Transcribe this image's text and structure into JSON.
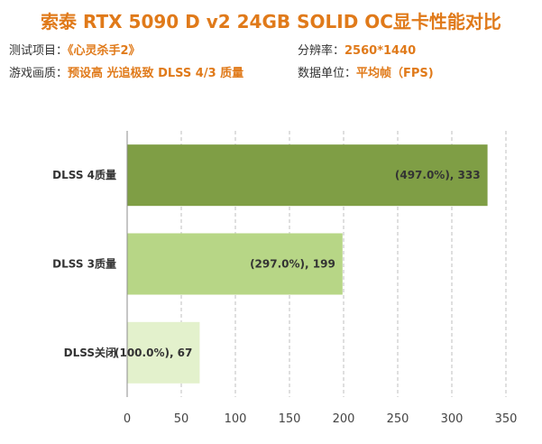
{
  "title": "索泰 RTX 5090 D v2 24GB SOLID OC显卡性能对比",
  "info": {
    "project_label": "测试项目：",
    "project_value": "《心灵杀手2》",
    "resolution_label": "分辨率：",
    "resolution_value": "2560*1440",
    "quality_label": "游戏画质：",
    "quality_value": "预设高 光追极致 DLSS 4/3 质量",
    "unit_label": "数据单位：",
    "unit_value": "平均帧（FPS)"
  },
  "colors": {
    "title": "#e07a1a",
    "grid": "#bfbfbf",
    "axis": "#8c8c8c"
  },
  "chart_data": {
    "type": "bar",
    "orientation": "horizontal",
    "categories": [
      "DLSS 4质量",
      "DLSS 3质量",
      "DLSS关闭"
    ],
    "values": [
      333,
      199,
      67
    ],
    "percent_labels": [
      "(497.0%)",
      "(297.0%)",
      "(100.0%)"
    ],
    "data_labels": [
      "(497.0%), 333",
      "(297.0%), 199",
      "(100.0%), 67"
    ],
    "bar_colors": [
      "#7f9e45",
      "#b7d686",
      "#e3f1cc"
    ],
    "xlim": [
      0,
      350
    ],
    "xticks": [
      0,
      50,
      100,
      150,
      200,
      250,
      300,
      350
    ],
    "grid": true,
    "grid_style": "dashed",
    "legend": "none"
  }
}
